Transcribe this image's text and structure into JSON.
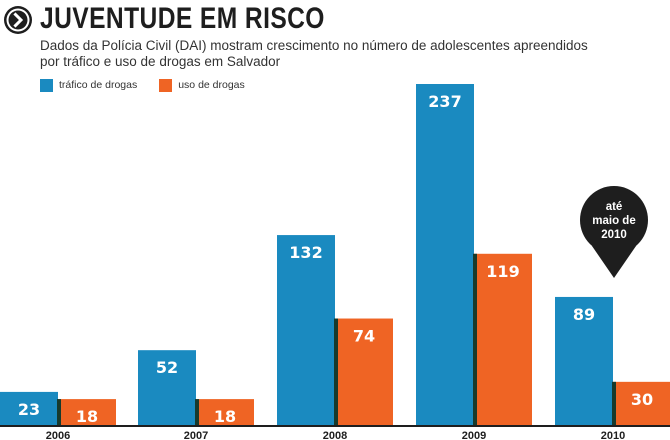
{
  "header": {
    "title": "JUVENTUDE EM RISCO",
    "subtitle": "Dados da Polícia Civil (DAI) mostram crescimento no número de adolescentes apreendidos por  tráfico e uso de drogas em Salvador"
  },
  "colors": {
    "trafico": "#1a8ac0",
    "uso": "#ef6424",
    "dark": "#1e1e1e",
    "divider": "#173a2c"
  },
  "annotation": {
    "lines": [
      "até",
      "maio de",
      "2010"
    ]
  },
  "chart_data": {
    "type": "bar",
    "title": "JUVENTUDE EM RISCO",
    "categories": [
      "2006",
      "2007",
      "2008",
      "2009",
      "2010"
    ],
    "series": [
      {
        "name": "tráfico de drogas",
        "values": [
          23,
          52,
          132,
          237,
          89
        ]
      },
      {
        "name": "uso de drogas",
        "values": [
          18,
          18,
          74,
          119,
          30
        ]
      }
    ],
    "data_labels": true,
    "ylim": [
      0,
      237
    ],
    "grid": false,
    "legend": "top-left",
    "xlabel": "",
    "ylabel": ""
  }
}
